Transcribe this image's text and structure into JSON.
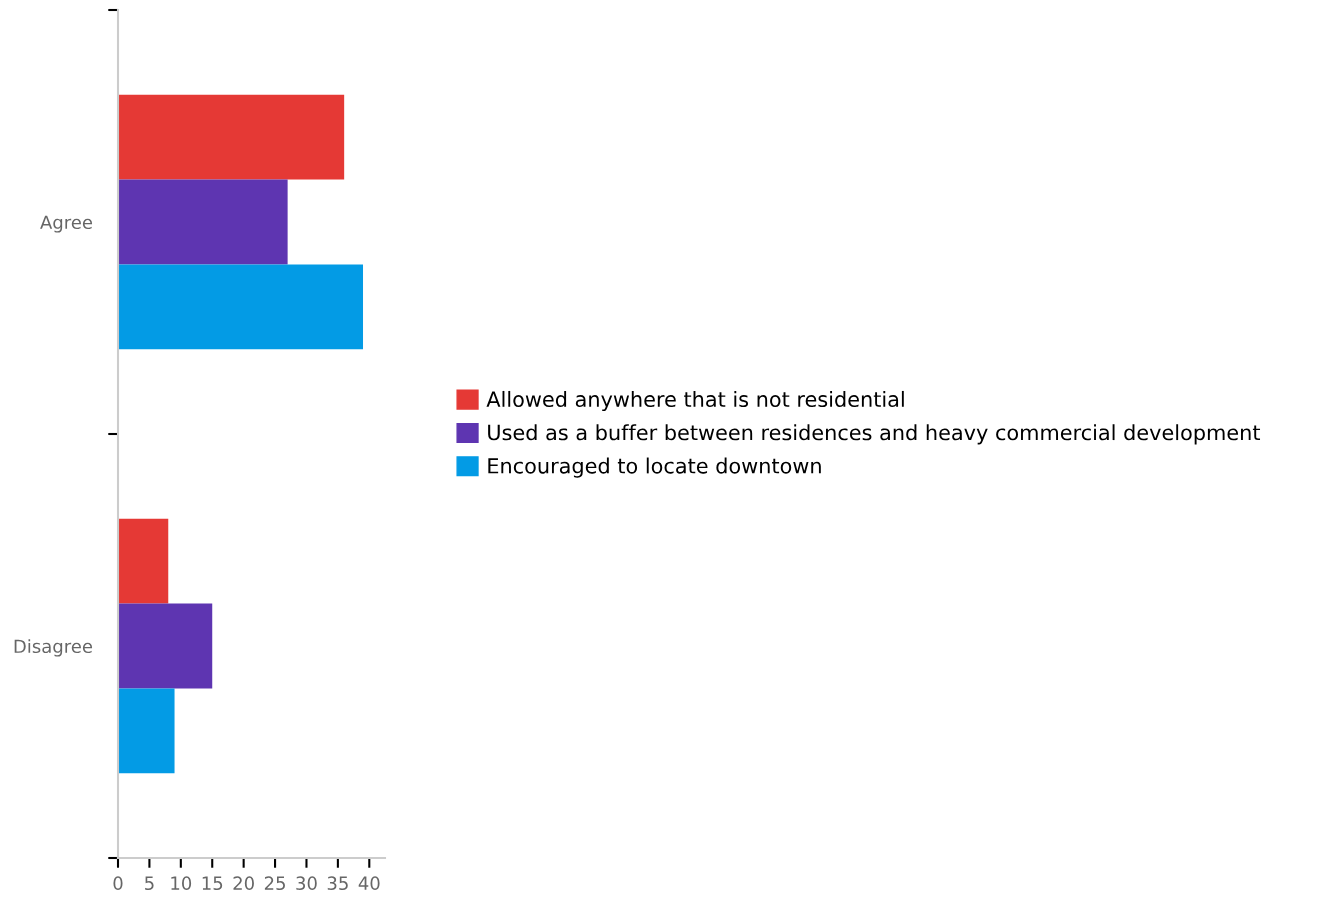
{
  "chart_data": {
    "type": "bar",
    "orientation": "horizontal",
    "categories": [
      "Agree",
      "Disagree"
    ],
    "series": [
      {
        "name": "Allowed anywhere that is not residential",
        "color": "#e53935",
        "values": [
          36,
          8
        ]
      },
      {
        "name": "Used as a buffer between residences and heavy commercial development",
        "color": "#5e35b1",
        "values": [
          27,
          15
        ]
      },
      {
        "name": "Encouraged to locate downtown",
        "color": "#039be5",
        "values": [
          39,
          9
        ]
      }
    ],
    "xlim": [
      0,
      42.5
    ],
    "xticks": [
      0,
      5,
      10,
      15,
      20,
      25,
      30,
      35,
      40
    ],
    "grid": false,
    "legend": "right"
  }
}
